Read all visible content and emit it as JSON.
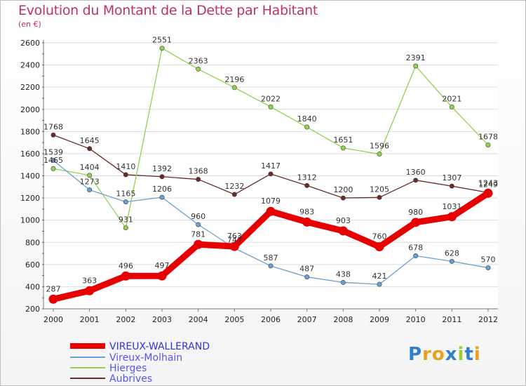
{
  "chart_data": {
    "type": "line",
    "title": "Evolution du Montant de la Dette par Habitant",
    "subtitle": "(en €)",
    "x": [
      "2000",
      "2001",
      "2002",
      "2003",
      "2004",
      "2005",
      "2006",
      "2007",
      "2008",
      "2009",
      "2010",
      "2011",
      "2012"
    ],
    "ylim": [
      200,
      2600
    ],
    "yticks": [
      200,
      400,
      600,
      800,
      1000,
      1200,
      1400,
      1600,
      1800,
      2000,
      2200,
      2400,
      2600
    ],
    "grid": "horizontal",
    "legend_position": "bottom-left",
    "series": [
      {
        "name": "VIREUX-WALLERAND",
        "color": "#e60000",
        "values": [
          287,
          363,
          496,
          497,
          781,
          763,
          1079,
          983,
          903,
          760,
          980,
          1031,
          1243
        ]
      },
      {
        "name": "Vireux-Molhain",
        "color": "#6a9fd0",
        "values": [
          1539,
          1273,
          1165,
          1206,
          960,
          747,
          587,
          487,
          438,
          421,
          678,
          628,
          570
        ]
      },
      {
        "name": "Hierges",
        "color": "#8fd250",
        "values": [
          1465,
          1404,
          931,
          2551,
          2363,
          2196,
          2022,
          1840,
          1651,
          1596,
          2391,
          2021,
          1678
        ]
      },
      {
        "name": "Aubrives",
        "color": "#6b2a2a",
        "values": [
          1768,
          1645,
          1410,
          1392,
          1368,
          1232,
          1417,
          1312,
          1200,
          1205,
          1360,
          1307,
          1249
        ]
      }
    ]
  },
  "legend_colors": {
    "VIREUX-WALLERAND": "#3333dd",
    "others": "#5555ee"
  },
  "logo": {
    "letters": [
      "P",
      "r",
      "o",
      "x",
      "i",
      "t",
      "i"
    ],
    "colors": [
      "#2f7fd0",
      "#e8a020",
      "#e8a020",
      "#2f7fd0",
      "#9acd32",
      "#2f7fd0",
      "#e8a020"
    ]
  }
}
